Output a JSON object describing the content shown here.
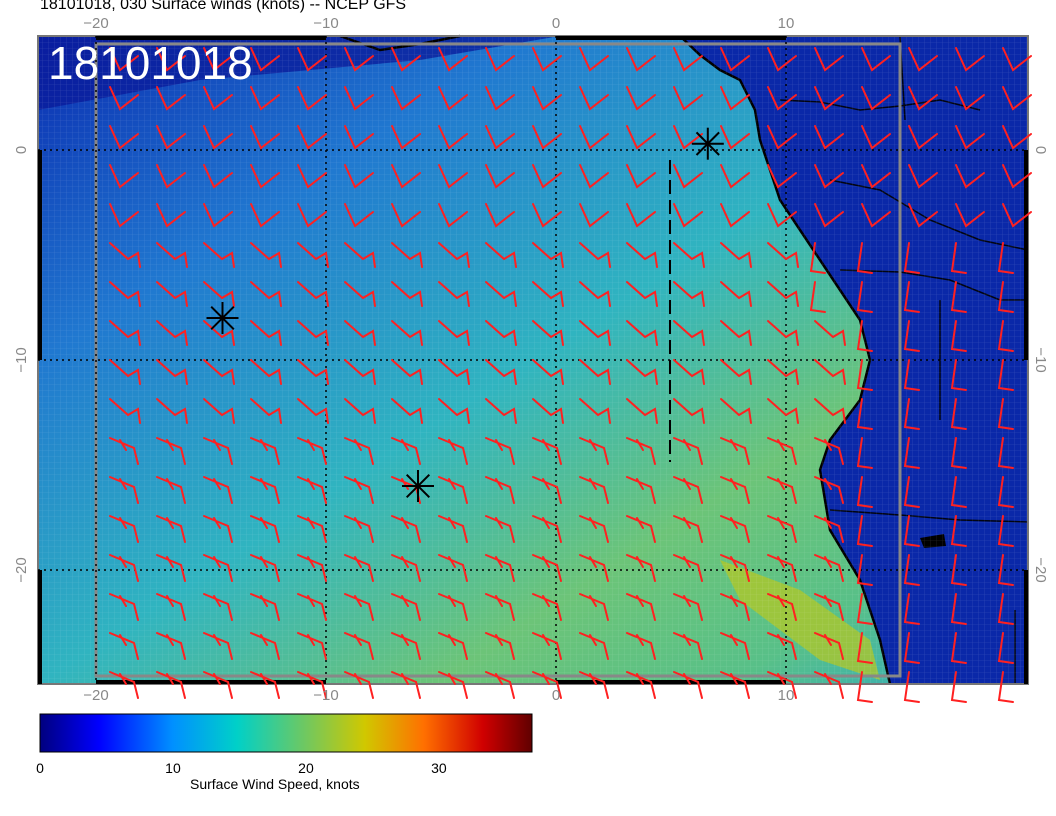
{
  "title": "18101018, 030 Surface winds (knots) -- NCEP GFS",
  "date_stamp": "18101018",
  "lon_ticks": [
    "−20",
    "−10",
    "0",
    "10"
  ],
  "lat_ticks": [
    "0",
    "−10",
    "−20"
  ],
  "colorbar": {
    "label": "Surface Wind Speed, knots",
    "ticks": [
      "0",
      "10",
      "20",
      "30"
    ],
    "range": [
      0,
      37
    ],
    "colors": [
      "#00007f",
      "#0000ff",
      "#0080ff",
      "#00c8c8",
      "#60c878",
      "#c8c800",
      "#ff8000",
      "#d00000",
      "#600000"
    ]
  },
  "map": {
    "lon_range": [
      -22.5,
      20.5
    ],
    "lat_range": [
      -25.5,
      5.5
    ],
    "gridlines": "dotted every 10 degrees",
    "ocean_color_low": "#1a3fc0",
    "ocean_color_mid": "#20b0c8",
    "ocean_color_high": "#80c860",
    "land_color": "#0a2aa0",
    "barb_color": "#ff2020",
    "storm_markers": [
      {
        "lon": -14.5,
        "lat": -8.0
      },
      {
        "lon": -6.0,
        "lat": -16.0
      },
      {
        "lon": 6.6,
        "lat": 0.3
      }
    ]
  }
}
